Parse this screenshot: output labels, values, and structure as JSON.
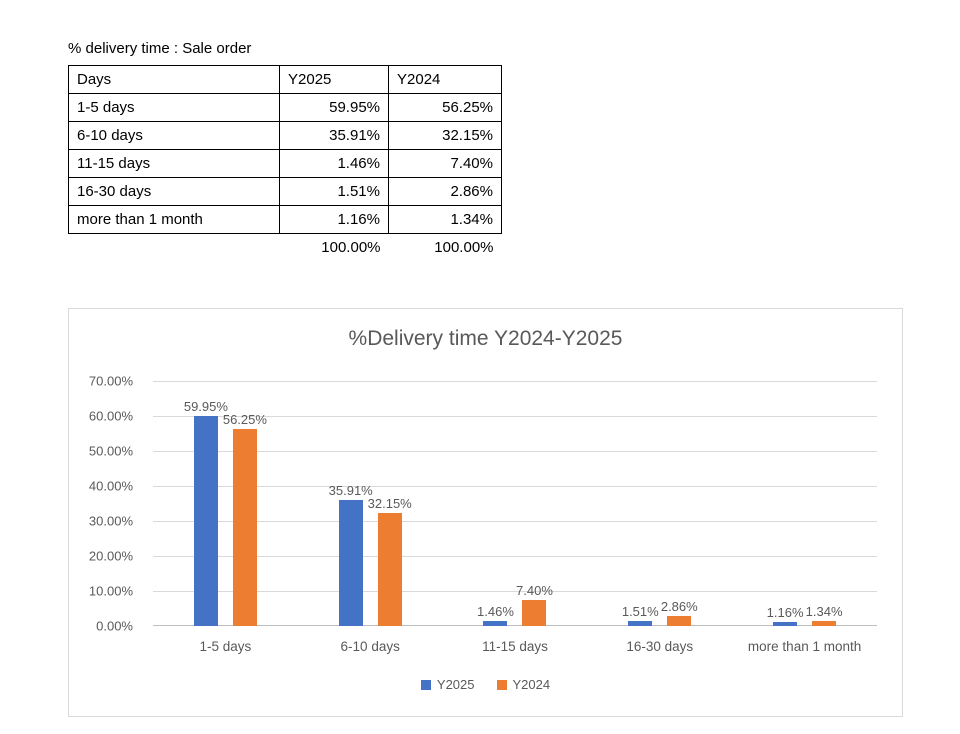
{
  "table": {
    "title": "% delivery time : Sale order",
    "headers": [
      "Days",
      "Y2025",
      "Y2024"
    ],
    "rows": [
      [
        "1-5 days",
        "59.95%",
        "56.25%"
      ],
      [
        "6-10 days",
        "35.91%",
        "32.15%"
      ],
      [
        "11-15 days",
        "1.46%",
        "7.40%"
      ],
      [
        "16-30 days",
        "1.51%",
        "2.86%"
      ],
      [
        "more than 1 month",
        "1.16%",
        "1.34%"
      ]
    ],
    "totals": [
      "",
      "100.00%",
      "100.00%"
    ]
  },
  "chart_data": {
    "type": "bar",
    "title": "%Delivery time Y2024-Y2025",
    "categories": [
      "1-5 days",
      "6-10 days",
      "11-15 days",
      "16-30 days",
      "more than 1 month"
    ],
    "series": [
      {
        "name": "Y2025",
        "color": "#4472C4",
        "values": [
          59.95,
          35.91,
          1.46,
          1.51,
          1.16
        ]
      },
      {
        "name": "Y2024",
        "color": "#ED7D31",
        "values": [
          56.25,
          32.15,
          7.4,
          2.86,
          1.34
        ]
      }
    ],
    "y_ticks": [
      "70.00%",
      "60.00%",
      "50.00%",
      "40.00%",
      "30.00%",
      "20.00%",
      "10.00%",
      "0.00%"
    ],
    "ylim": [
      0,
      70
    ],
    "data_labels": true,
    "grid": true,
    "legend_position": "bottom",
    "text_color": "#595959",
    "gridline_color": "#d9d9d9"
  }
}
